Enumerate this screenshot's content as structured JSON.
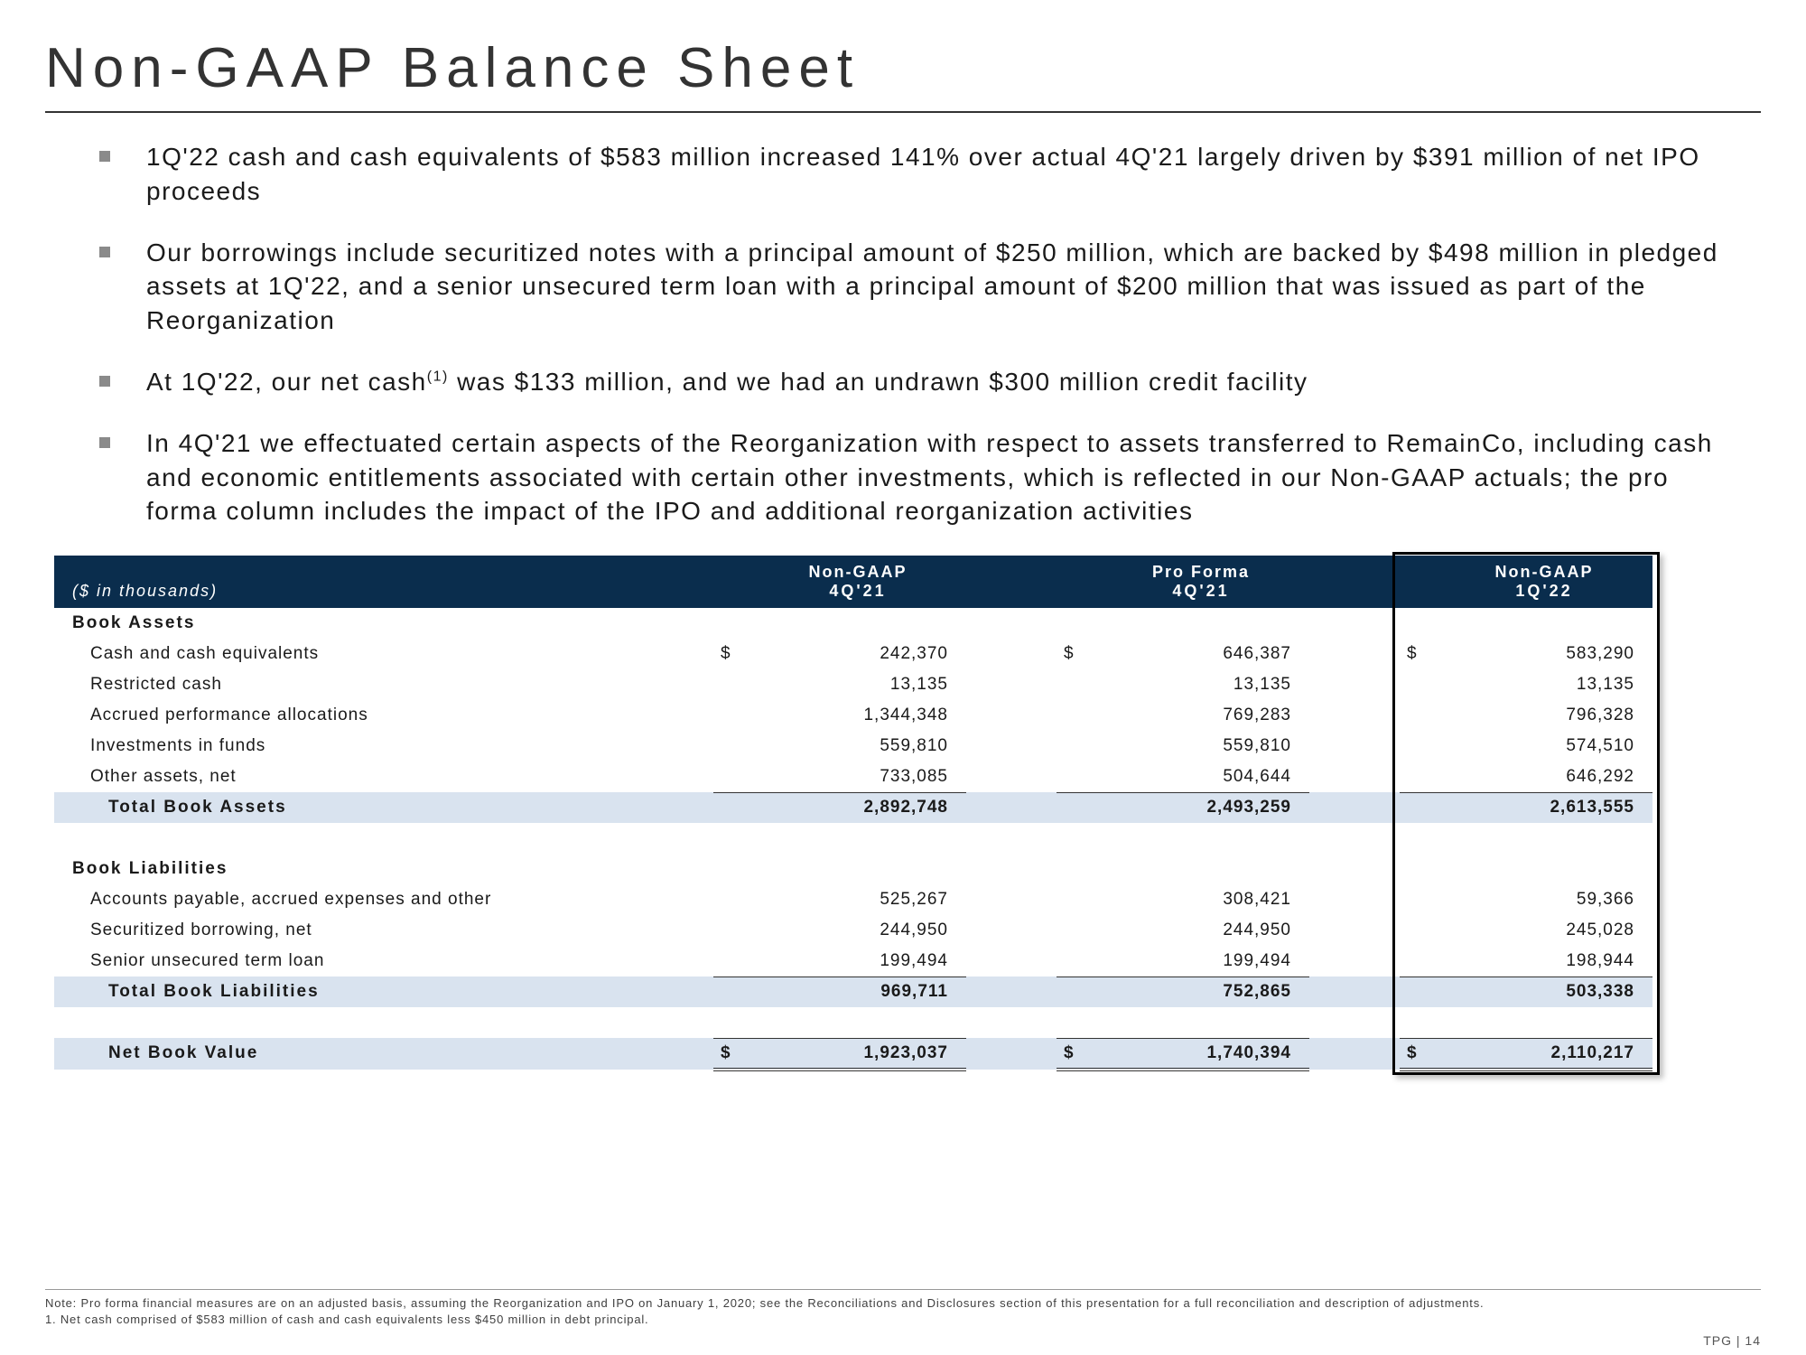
{
  "title": "Non-GAAP Balance Sheet",
  "bullets": [
    "1Q'22 cash and cash equivalents of $583 million increased 141% over actual 4Q'21 largely driven by $391 million of net IPO proceeds",
    "Our borrowings include securitized notes with a principal amount of $250 million, which are backed by $498 million in pledged assets at 1Q'22, and a senior unsecured term loan with a principal amount of $200 million that was issued as part of the Reorganization",
    "At 1Q'22, our net cash<sup>(1)</sup> was $133 million, and we had an undrawn $300 million credit facility",
    "In 4Q'21 we effectuated certain aspects of the Reorganization with respect to assets transferred to RemainCo, including cash and economic entitlements associated with certain other investments, which is reflected in our Non-GAAP actuals; the pro forma column includes the impact of the IPO and additional reorganization activities"
  ],
  "table": {
    "corner_label": "($ in thousands)",
    "col_headers": [
      {
        "top": "Non-GAAP",
        "sub": "4Q'21"
      },
      {
        "top": "Pro Forma",
        "sub": "4Q'21"
      },
      {
        "top": "Non-GAAP",
        "sub": "1Q'22"
      }
    ],
    "sections": [
      {
        "title": "Book Assets",
        "rows": [
          {
            "label": "Cash and cash equivalents",
            "vals": [
              "242,370",
              "646,387",
              "583,290"
            ],
            "dollar": true
          },
          {
            "label": "Restricted cash",
            "vals": [
              "13,135",
              "13,135",
              "13,135"
            ]
          },
          {
            "label": "Accrued performance allocations",
            "vals": [
              "1,344,348",
              "769,283",
              "796,328"
            ]
          },
          {
            "label": "Investments in funds",
            "vals": [
              "559,810",
              "559,810",
              "574,510"
            ]
          },
          {
            "label": "Other assets, net",
            "vals": [
              "733,085",
              "504,644",
              "646,292"
            ]
          }
        ],
        "total": {
          "label": "Total Book Assets",
          "vals": [
            "2,892,748",
            "2,493,259",
            "2,613,555"
          ]
        }
      },
      {
        "title": "Book Liabilities",
        "rows": [
          {
            "label": "Accounts payable, accrued expenses and other",
            "vals": [
              "525,267",
              "308,421",
              "59,366"
            ]
          },
          {
            "label": "Securitized borrowing, net",
            "vals": [
              "244,950",
              "244,950",
              "245,028"
            ]
          },
          {
            "label": "Senior unsecured term loan",
            "vals": [
              "199,494",
              "199,494",
              "198,944"
            ]
          }
        ],
        "total": {
          "label": "Total Book Liabilities",
          "vals": [
            "969,711",
            "752,865",
            "503,338"
          ]
        }
      }
    ],
    "net": {
      "label": "Net Book Value",
      "vals": [
        "1,923,037",
        "1,740,394",
        "2,110,217"
      ],
      "dollar": true
    }
  },
  "footnotes": [
    "Note: Pro forma financial measures are on an adjusted basis, assuming the Reorganization and IPO on January 1, 2020; see the Reconciliations and Disclosures section of this presentation for a full reconciliation and description of adjustments.",
    "1. Net cash comprised of $583 million of cash and cash equivalents less $450 million in debt principal."
  ],
  "footer": "TPG | 14",
  "style": {
    "header_bg": "#0a2d4d",
    "total_bg": "#d9e3ef",
    "title_color": "#333333",
    "text_color": "#1a1a1a",
    "col_label_w": 730,
    "col_dollar_w": 40,
    "col_num_w": 240,
    "col_gap_w": 100,
    "title_fontsize": 62,
    "bullet_fontsize": 28,
    "table_fontsize": 19
  }
}
